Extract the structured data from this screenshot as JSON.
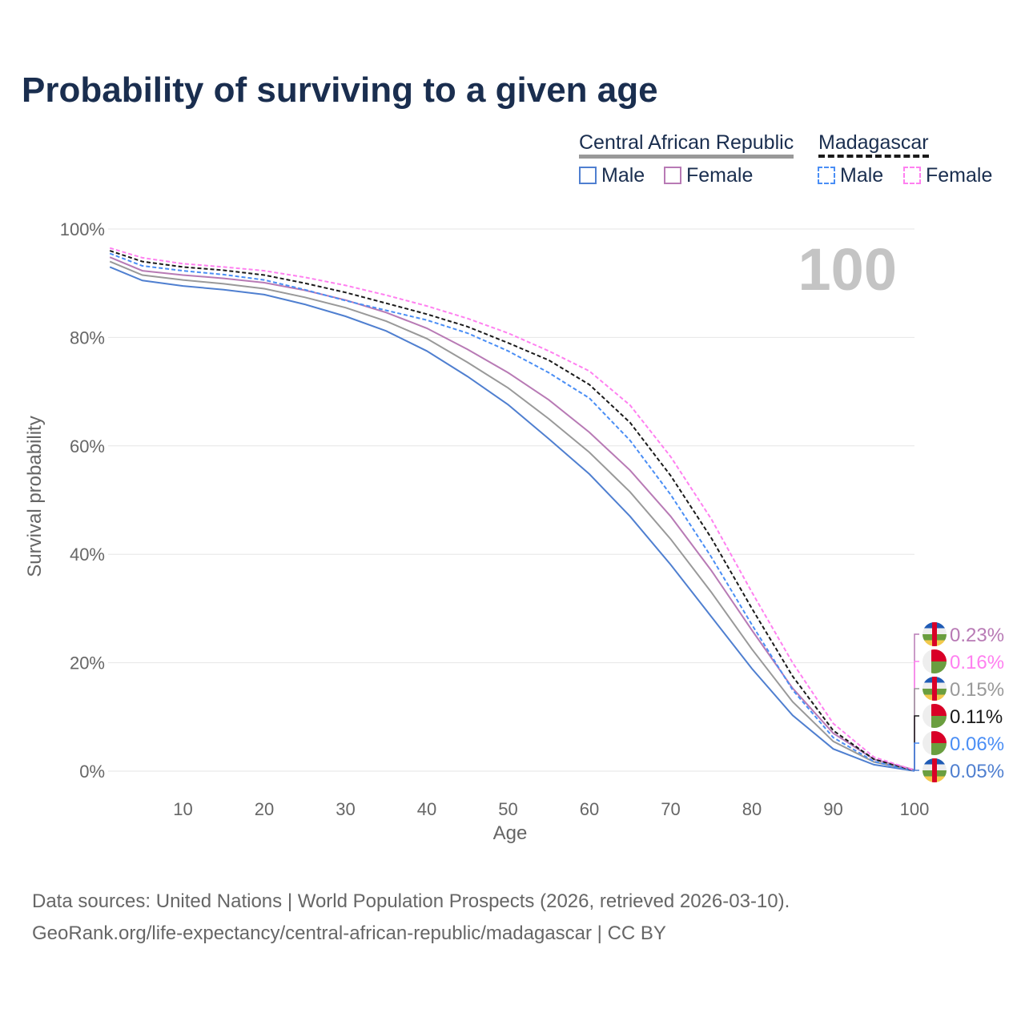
{
  "chart_data": {
    "type": "line",
    "title": "Probability of surviving to a given age",
    "xlabel": "Age",
    "ylabel": "Survival probability",
    "xlim": [
      0,
      100
    ],
    "ylim": [
      0,
      100
    ],
    "xticks": [
      10,
      20,
      30,
      40,
      50,
      60,
      70,
      80,
      90,
      100
    ],
    "yticks": [
      "0%",
      "20%",
      "40%",
      "60%",
      "80%",
      "100%"
    ],
    "year_label": "100",
    "legend": {
      "group1": "Central African Republic",
      "group2": "Madagascar",
      "male": "Male",
      "female": "Female"
    },
    "x": [
      1,
      5,
      10,
      15,
      20,
      25,
      30,
      35,
      40,
      45,
      50,
      55,
      60,
      65,
      70,
      75,
      80,
      85,
      90,
      95,
      100
    ],
    "series": [
      {
        "name": "Central African Republic Male",
        "color": "#4f7fd0",
        "dash": false,
        "end_label": "0.05%",
        "flag": "CAF",
        "values": [
          93.0,
          90.5,
          89.5,
          88.8,
          87.9,
          86.1,
          83.9,
          81.2,
          77.5,
          72.8,
          67.6,
          61.3,
          54.8,
          47,
          38.1,
          28.5,
          18.9,
          10.3,
          4.1,
          1.2,
          0.05
        ]
      },
      {
        "name": "Central African Republic",
        "color": "#999999",
        "dash": false,
        "end_label": "0.15%",
        "flag": "CAF",
        "values": [
          94.0,
          91.5,
          90.6,
          89.9,
          89,
          87.4,
          85.5,
          83,
          79.8,
          75.4,
          70.7,
          65,
          58.8,
          51.5,
          42.8,
          33,
          22.5,
          12.8,
          5.5,
          1.7,
          0.15
        ]
      },
      {
        "name": "Central African Republic Female",
        "color": "#b87ab5",
        "dash": false,
        "end_label": "0.23%",
        "flag": "CAF",
        "values": [
          94.8,
          92.3,
          91.5,
          90.9,
          90.1,
          88.7,
          86.9,
          84.6,
          81.7,
          77.8,
          73.5,
          68.5,
          62.5,
          55.5,
          47,
          37,
          26,
          15.3,
          7,
          2.2,
          0.23
        ]
      },
      {
        "name": "Madagascar Male",
        "color": "#4a8ef5",
        "dash": true,
        "end_label": "0.06%",
        "flag": "MDG",
        "values": [
          95.5,
          93.2,
          92.3,
          91.6,
          90.6,
          88.8,
          86.8,
          85.0,
          83.2,
          80.8,
          77.5,
          73.5,
          68.8,
          61,
          51,
          39.5,
          27,
          15,
          6.2,
          1.8,
          0.06
        ]
      },
      {
        "name": "Madagascar",
        "color": "#1a1a1a",
        "dash": true,
        "end_label": "0.11%",
        "flag": "MDG",
        "values": [
          96,
          94,
          93,
          92.4,
          91.5,
          90,
          88.3,
          86.3,
          84.3,
          82,
          79,
          75.8,
          71.3,
          64.3,
          54.5,
          43,
          30,
          17.5,
          7.5,
          2.2,
          0.11
        ]
      },
      {
        "name": "Madagascar Female",
        "color": "#ff80f0",
        "dash": true,
        "end_label": "0.16%",
        "flag": "MDG",
        "values": [
          96.5,
          94.7,
          93.6,
          93,
          92.3,
          91.1,
          89.6,
          87.8,
          85.8,
          83.5,
          80.8,
          77.5,
          73.8,
          67.5,
          58,
          46.5,
          33,
          20,
          8.8,
          2.6,
          0.16
        ]
      }
    ]
  },
  "source": {
    "line1": "Data sources: United Nations | World Population Prospects (2026, retrieved 2026-03-10).",
    "line2": "GeoRank.org/life-expectancy/central-african-republic/madagascar | CC BY"
  }
}
